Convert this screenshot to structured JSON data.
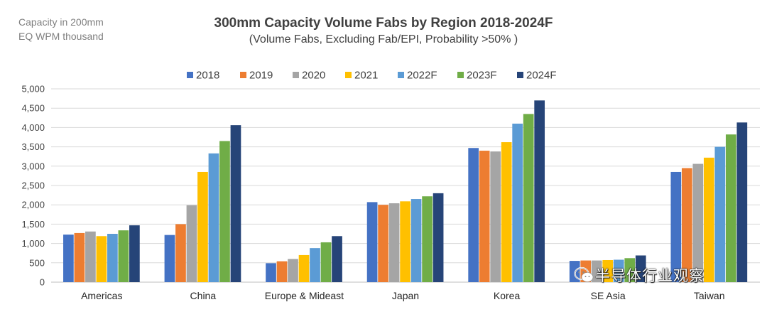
{
  "header": {
    "unit_line1": "Capacity in 200mm",
    "unit_line2": "EQ WPM thousand",
    "title": "300mm Capacity Volume Fabs by Region 2018-2024F",
    "subtitle": "(Volume Fabs, Excluding Fab/EPI, Probability >50% )"
  },
  "watermark": {
    "text": "半导体行业观察",
    "icon": "wechat-icon"
  },
  "chart_data": {
    "type": "bar",
    "categories": [
      "Americas",
      "China",
      "Europe & Mideast",
      "Japan",
      "Korea",
      "SE Asia",
      "Taiwan"
    ],
    "series": [
      {
        "name": "2018",
        "color": "#4472C4",
        "values": [
          1230,
          1220,
          490,
          2070,
          3470,
          550,
          2850
        ]
      },
      {
        "name": "2019",
        "color": "#ED7D31",
        "values": [
          1270,
          1500,
          540,
          2000,
          3400,
          560,
          2950
        ]
      },
      {
        "name": "2020",
        "color": "#A5A5A5",
        "values": [
          1310,
          1990,
          600,
          2040,
          3380,
          560,
          3060
        ]
      },
      {
        "name": "2021",
        "color": "#FFC000",
        "values": [
          1190,
          2850,
          700,
          2090,
          3620,
          570,
          3220
        ]
      },
      {
        "name": "2022F",
        "color": "#5B9BD5",
        "values": [
          1250,
          3330,
          880,
          2150,
          4100,
          580,
          3500
        ]
      },
      {
        "name": "2023F",
        "color": "#70AD47",
        "values": [
          1340,
          3650,
          1030,
          2220,
          4350,
          620,
          3820
        ]
      },
      {
        "name": "2024F",
        "color": "#264478",
        "values": [
          1470,
          4060,
          1190,
          2300,
          4700,
          690,
          4130
        ]
      }
    ],
    "ylim": [
      0,
      5000
    ],
    "yticks": [
      "0",
      "500",
      "1,000",
      "1,500",
      "2,000",
      "2,500",
      "3,000",
      "3,500",
      "4,000",
      "4,500",
      "5,000"
    ],
    "grid": true,
    "legend_position": "top"
  }
}
